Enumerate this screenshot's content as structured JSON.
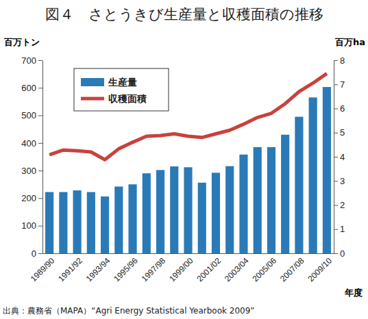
{
  "chart_data": {
    "type": "bar",
    "title": "図４　さとうきび生産量と収穫面積の推移",
    "y_label": "百万トン",
    "y2_label": "百万ha",
    "x_label": "年度",
    "source": "出典：農務省（MAPA）“Agri Energy Statistical Yearbook 2009”",
    "categories": [
      "1989/90",
      null,
      "1991/92",
      null,
      "1993/94",
      null,
      "1995/96",
      null,
      "1997/98",
      null,
      "1999/00",
      null,
      "2001/02",
      null,
      "2003/04",
      null,
      "2005/06",
      null,
      "2007/08",
      null,
      "2009/10"
    ],
    "series": [
      {
        "name": "生産量",
        "type": "bar",
        "color": "#2a7ab8",
        "values": [
          222,
          222,
          228,
          222,
          206,
          242,
          250,
          290,
          302,
          315,
          312,
          256,
          292,
          316,
          358,
          385,
          385,
          430,
          495,
          565,
          603
        ]
      },
      {
        "name": "収穫面積",
        "type": "line",
        "color": "#c8423c",
        "axis": "y2",
        "values": [
          4.08,
          4.28,
          4.25,
          4.2,
          3.88,
          4.33,
          4.6,
          4.85,
          4.88,
          4.95,
          4.85,
          4.8,
          4.95,
          5.1,
          5.35,
          5.63,
          5.8,
          6.2,
          6.7,
          7.05,
          7.45
        ]
      }
    ],
    "ylim": [
      0,
      700
    ],
    "yticks": [
      0,
      100,
      200,
      300,
      400,
      500,
      600,
      700
    ],
    "y2lim": [
      0,
      8
    ],
    "y2ticks": [
      0,
      1,
      2,
      3,
      4,
      5,
      6,
      7,
      8
    ],
    "grid": false,
    "legend": "upper left"
  }
}
